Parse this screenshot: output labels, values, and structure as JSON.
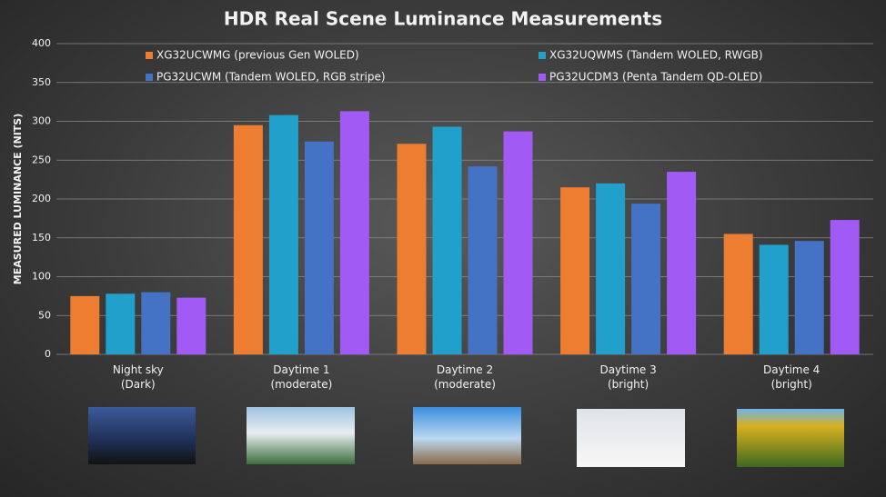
{
  "chart_data": {
    "type": "bar",
    "title": "HDR Real Scene Luminance Measurements",
    "y_label": "MEASURED LUMINANCE (NITS)",
    "categories": [
      "Night sky\n(Dark)",
      "Daytime 1\n(moderate)",
      "Daytime 2\n(moderate)",
      "Daytime 3\n(bright)",
      "Daytime 4\n(bright)"
    ],
    "series": [
      {
        "name": "XG32UCWMG (previous Gen WOLED)",
        "color": "#ed7d31",
        "values": [
          75,
          295,
          271,
          215,
          155
        ]
      },
      {
        "name": "XG32UQWMS (Tandem WOLED, RWGB)",
        "color": "#21a0cc",
        "values": [
          78,
          308,
          293,
          220,
          141
        ]
      },
      {
        "name": "PG32UCWM (Tandem WOLED, RGB stripe)",
        "color": "#4472c4",
        "values": [
          80,
          274,
          242,
          194,
          146
        ]
      },
      {
        "name": "PG32UCDM3 (Penta Tandem QD-OLED)",
        "color": "#a25af5",
        "values": [
          73,
          313,
          287,
          235,
          173
        ]
      }
    ],
    "ylim": [
      0,
      400
    ],
    "yticks": [
      0,
      50,
      100,
      150,
      200,
      250,
      300,
      350,
      400
    ],
    "grid": true
  }
}
